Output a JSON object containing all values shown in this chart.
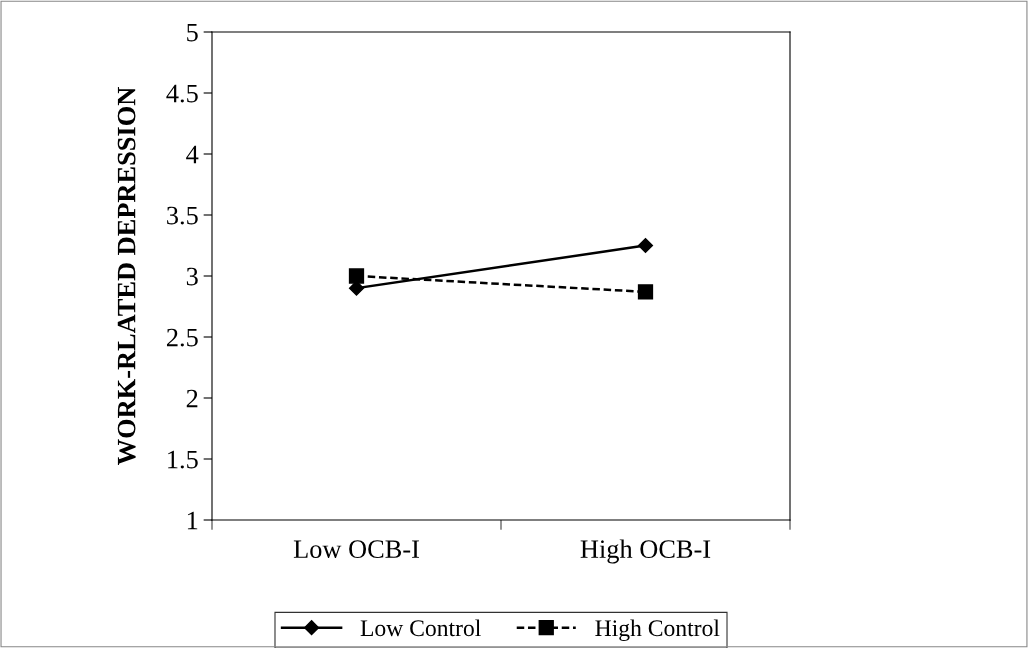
{
  "chart_data": {
    "type": "line",
    "ylabel": "WORK-RLATED DEPRESSION",
    "categories": [
      "Low OCB-I",
      "High OCB-I"
    ],
    "series": [
      {
        "name": "Low Control",
        "color": "#000000",
        "marker": "diamond",
        "line_style": "solid",
        "values": [
          2.9,
          3.25
        ]
      },
      {
        "name": "High Control",
        "color": "#000000",
        "marker": "square",
        "line_style": "dashed",
        "values": [
          3.0,
          2.87
        ]
      }
    ],
    "ylim": [
      1,
      5
    ],
    "yticks": [
      1,
      1.5,
      2,
      2.5,
      3,
      3.5,
      4,
      4.5,
      5
    ],
    "grid": false,
    "legend": "bottom"
  }
}
